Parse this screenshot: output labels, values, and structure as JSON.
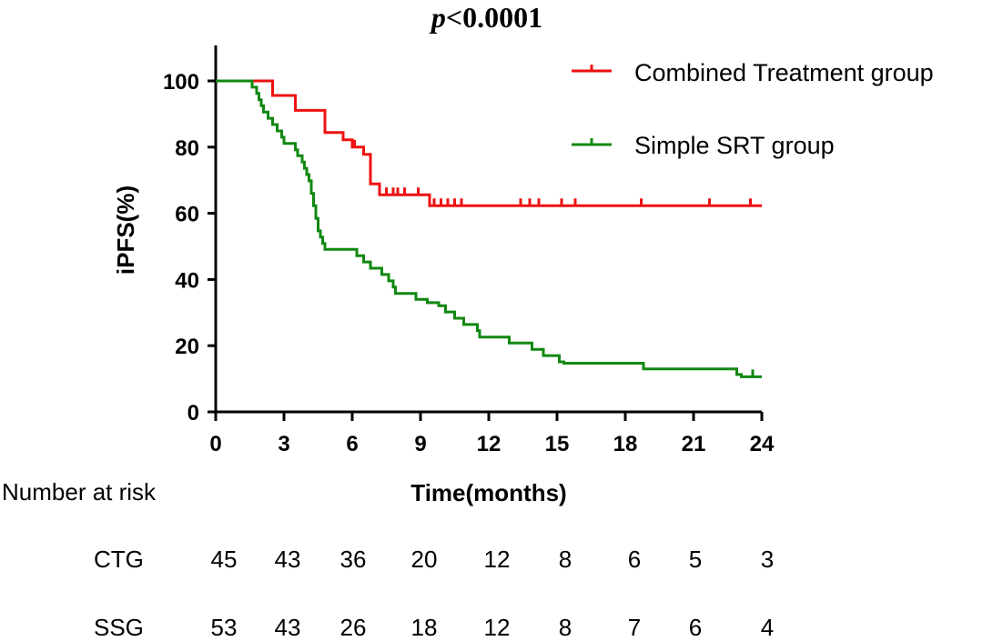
{
  "title": {
    "prefix": "p",
    "rest": "<0.0001"
  },
  "risk_header": "Number at risk",
  "colors": {
    "ctg": "#ee1111",
    "ssg": "#118811",
    "axis": "#000000"
  },
  "chart_data": {
    "type": "line",
    "subtype": "kaplan-meier",
    "title": "p<0.0001",
    "xlabel": "Time(months)",
    "ylabel": "iPFS(%)",
    "xlim": [
      0,
      24
    ],
    "ylim": [
      0,
      100
    ],
    "xticks": [
      0,
      3,
      6,
      9,
      12,
      15,
      18,
      21,
      24
    ],
    "yticks": [
      0,
      20,
      40,
      60,
      80,
      100
    ],
    "legend_position": "top-right",
    "series": [
      {
        "key": "ctg",
        "name": "Combined Treatment group",
        "color": "#ee1111",
        "steps": [
          [
            0,
            100
          ],
          [
            2.5,
            95.6
          ],
          [
            3.5,
            91.1
          ],
          [
            4.8,
            84.4
          ],
          [
            5.6,
            82.2
          ],
          [
            6.0,
            80.0
          ],
          [
            6.5,
            77.8
          ],
          [
            6.8,
            73.3
          ],
          [
            6.8,
            68.9
          ],
          [
            7.2,
            66.7
          ],
          [
            7.2,
            65.6
          ],
          [
            9.4,
            62.3
          ],
          [
            24.0,
            62.3
          ]
        ],
        "censor": [
          6.1,
          7.5,
          7.8,
          8.0,
          8.3,
          8.9,
          9.6,
          9.9,
          10.2,
          10.5,
          10.8,
          13.4,
          13.8,
          14.2,
          15.2,
          15.8,
          18.7,
          21.7,
          23.5
        ],
        "at_risk": [
          45,
          43,
          36,
          20,
          12,
          8,
          6,
          5,
          3
        ]
      },
      {
        "key": "ssg",
        "name": "Simple SRT group",
        "color": "#118811",
        "steps": [
          [
            0,
            100
          ],
          [
            1.6,
            98.1
          ],
          [
            1.8,
            96.2
          ],
          [
            1.9,
            94.3
          ],
          [
            2.0,
            92.5
          ],
          [
            2.1,
            90.6
          ],
          [
            2.3,
            88.7
          ],
          [
            2.5,
            86.8
          ],
          [
            2.7,
            84.9
          ],
          [
            2.9,
            83.0
          ],
          [
            3.0,
            81.1
          ],
          [
            3.5,
            79.2
          ],
          [
            3.6,
            77.4
          ],
          [
            3.8,
            75.5
          ],
          [
            3.9,
            73.6
          ],
          [
            4.0,
            71.7
          ],
          [
            4.1,
            69.8
          ],
          [
            4.2,
            67.9
          ],
          [
            4.2,
            66.0
          ],
          [
            4.3,
            64.2
          ],
          [
            4.3,
            62.3
          ],
          [
            4.4,
            60.4
          ],
          [
            4.4,
            58.5
          ],
          [
            4.5,
            56.6
          ],
          [
            4.5,
            54.7
          ],
          [
            4.6,
            52.8
          ],
          [
            4.7,
            50.9
          ],
          [
            4.8,
            49.1
          ],
          [
            6.2,
            47.2
          ],
          [
            6.5,
            45.3
          ],
          [
            6.8,
            43.4
          ],
          [
            7.3,
            41.5
          ],
          [
            7.6,
            39.6
          ],
          [
            7.8,
            37.7
          ],
          [
            7.9,
            35.8
          ],
          [
            8.8,
            34.0
          ],
          [
            9.3,
            33.0
          ],
          [
            9.8,
            32.1
          ],
          [
            10.1,
            30.2
          ],
          [
            10.5,
            28.3
          ],
          [
            10.9,
            26.4
          ],
          [
            11.5,
            24.5
          ],
          [
            11.6,
            22.6
          ],
          [
            12.9,
            20.8
          ],
          [
            13.9,
            18.9
          ],
          [
            14.4,
            17.0
          ],
          [
            15.1,
            15.1
          ],
          [
            15.3,
            14.7
          ],
          [
            18.8,
            13.0
          ],
          [
            22.9,
            11.3
          ],
          [
            23.1,
            10.6
          ],
          [
            24.0,
            10.6
          ]
        ],
        "censor": [
          23.6
        ],
        "at_risk": [
          53,
          43,
          26,
          18,
          12,
          8,
          7,
          6,
          4
        ]
      }
    ]
  },
  "risk_table": {
    "header": "Number at risk",
    "rows": [
      {
        "label": "CTG",
        "values": [
          "45",
          "43",
          "36",
          "20",
          "12",
          "8",
          "6",
          "5",
          "3"
        ]
      },
      {
        "label": "SSG",
        "values": [
          "53",
          "43",
          "26",
          "18",
          "12",
          "8",
          "7",
          "6",
          "4"
        ]
      }
    ]
  }
}
